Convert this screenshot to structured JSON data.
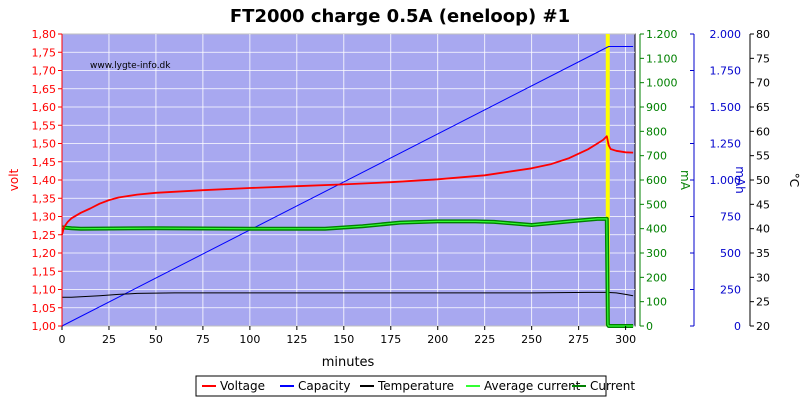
{
  "chart_data": {
    "type": "line",
    "title": "FT2000 charge 0.5A (eneloop) #1",
    "watermark": "www.lygte-info.dk",
    "xlabel": "minutes",
    "xlim": [
      0,
      305
    ],
    "x_ticks": [
      0,
      25,
      50,
      75,
      100,
      125,
      150,
      175,
      200,
      225,
      250,
      275,
      300
    ],
    "grid": true,
    "background": "#a8a8f0",
    "axes": {
      "volt": {
        "label": "volt",
        "color": "#ff0000",
        "lim": [
          1.0,
          1.8
        ],
        "ticks": [
          "1,00",
          "1,05",
          "1,10",
          "1,15",
          "1,20",
          "1,25",
          "1,30",
          "1,35",
          "1,40",
          "1,45",
          "1,50",
          "1,55",
          "1,60",
          "1,65",
          "1,70",
          "1,75",
          "1,80"
        ]
      },
      "mA": {
        "label": "mA",
        "color": "#008000",
        "lim": [
          0,
          1200
        ],
        "ticks": [
          "0",
          "100",
          "200",
          "300",
          "400",
          "500",
          "600",
          "700",
          "800",
          "900",
          "1.000",
          "1.100",
          "1.200"
        ]
      },
      "mAh": {
        "label": "mAh",
        "color": "#0000cc",
        "lim": [
          0,
          2100
        ],
        "ticks": [
          "0",
          "250",
          "500",
          "750",
          "1.000",
          "1.250",
          "1.500",
          "1.750",
          "2.000"
        ]
      },
      "celsius": {
        "label": "°C",
        "color": "#000000",
        "lim": [
          20,
          80
        ],
        "ticks": [
          "20",
          "25",
          "30",
          "35",
          "40",
          "45",
          "50",
          "55",
          "60",
          "65",
          "70",
          "75",
          "80"
        ]
      }
    },
    "series": [
      {
        "name": "Voltage",
        "axis": "volt",
        "color": "#ff0000",
        "x": [
          0,
          1,
          3,
          5,
          10,
          15,
          20,
          25,
          30,
          40,
          50,
          75,
          100,
          125,
          150,
          175,
          200,
          225,
          250,
          260,
          270,
          280,
          285,
          288,
          290,
          291,
          292,
          295,
          300,
          304
        ],
        "y": [
          1.25,
          1.27,
          1.285,
          1.295,
          1.31,
          1.322,
          1.335,
          1.345,
          1.352,
          1.36,
          1.365,
          1.372,
          1.378,
          1.383,
          1.388,
          1.394,
          1.402,
          1.413,
          1.432,
          1.443,
          1.46,
          1.484,
          1.5,
          1.51,
          1.52,
          1.495,
          1.485,
          1.48,
          1.476,
          1.475
        ]
      },
      {
        "name": "Capacity",
        "axis": "mAh",
        "color": "#0000ff",
        "x": [
          0,
          291,
          304
        ],
        "y": [
          0,
          2010,
          2010
        ]
      },
      {
        "name": "Temperature",
        "axis": "celsius",
        "color": "#000000",
        "x": [
          0,
          5,
          20,
          30,
          40,
          60,
          100,
          150,
          200,
          250,
          280,
          290,
          295,
          300,
          304
        ],
        "y": [
          25.9,
          25.9,
          26.2,
          26.5,
          26.7,
          26.8,
          26.8,
          26.8,
          26.8,
          26.8,
          26.9,
          26.9,
          26.8,
          26.5,
          26.2
        ]
      },
      {
        "name": "Average current",
        "axis": "mA",
        "color": "#33ff33",
        "x": [
          0,
          5,
          10,
          50,
          100,
          140,
          160,
          180,
          200,
          220,
          230,
          250,
          270,
          285,
          290,
          290.6,
          291,
          304
        ],
        "y": [
          405,
          402,
          400,
          402,
          400,
          400,
          410,
          425,
          430,
          430,
          428,
          415,
          430,
          440,
          440,
          5,
          0,
          0
        ]
      },
      {
        "name": "Current",
        "axis": "mA",
        "color": "#008000",
        "x": [
          0,
          5,
          10,
          50,
          100,
          140,
          160,
          180,
          200,
          220,
          230,
          250,
          270,
          285,
          290,
          290.6,
          291,
          304
        ],
        "y": [
          405,
          402,
          400,
          402,
          400,
          400,
          410,
          425,
          430,
          430,
          428,
          415,
          430,
          440,
          440,
          5,
          0,
          0
        ]
      }
    ],
    "annotations": [
      {
        "type": "vertical-band",
        "x": 290.5,
        "color": "#ffff00"
      }
    ],
    "legend": {
      "placement": "bottom-center",
      "items": [
        {
          "label": "Voltage",
          "color": "#ff0000"
        },
        {
          "label": "Capacity",
          "color": "#0000ff"
        },
        {
          "label": "Temperature",
          "color": "#000000"
        },
        {
          "label": "Average current",
          "color": "#33ff33"
        },
        {
          "label": "Current",
          "color": "#008000"
        }
      ]
    }
  }
}
